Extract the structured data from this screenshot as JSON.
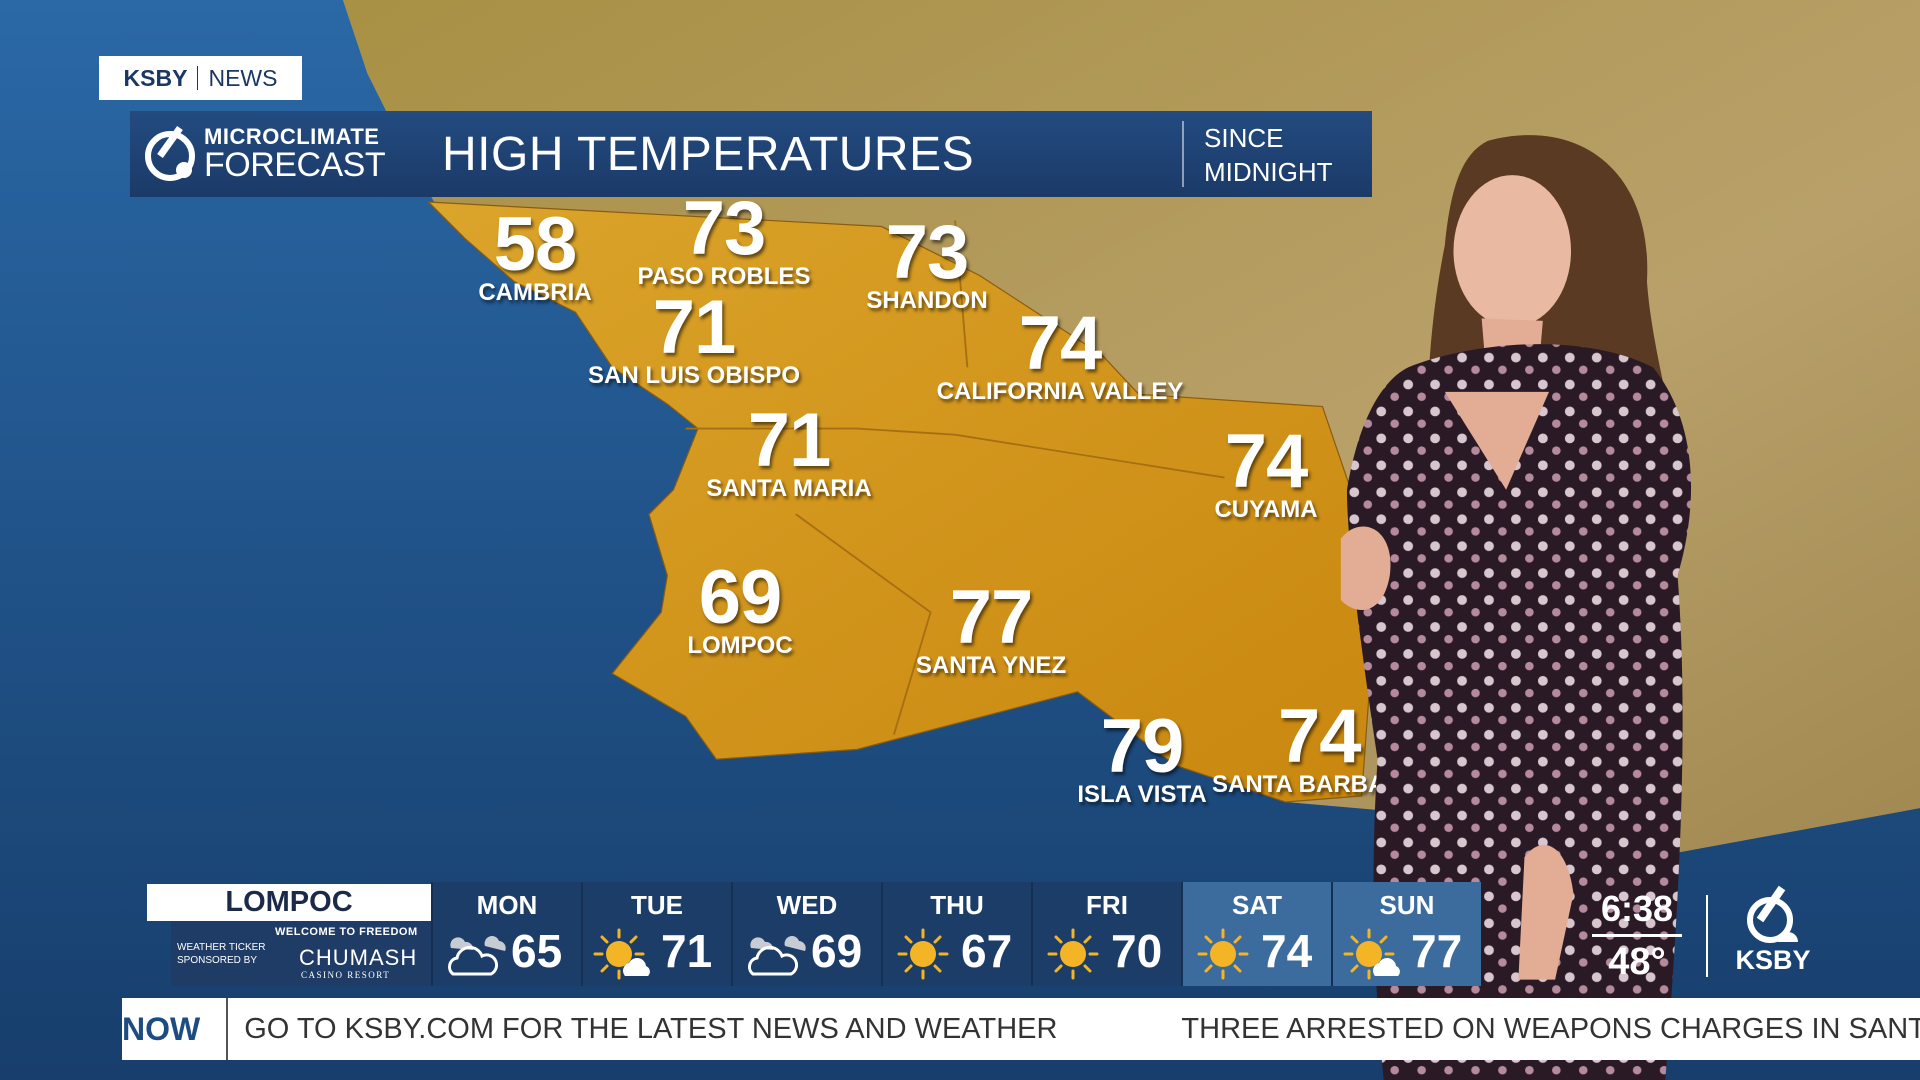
{
  "brand_tab": {
    "station": "KSBY",
    "section": "NEWS"
  },
  "header": {
    "logo_line1": "MICROCLIMATE",
    "logo_line2": "FORECAST",
    "title": "HIGH TEMPERATURES",
    "period_line1": "SINCE",
    "period_line2": "MIDNIGHT"
  },
  "cities": [
    {
      "name": "CAMBRIA",
      "temp": "58"
    },
    {
      "name": "PASO ROBLES",
      "temp": "73"
    },
    {
      "name": "SHANDON",
      "temp": "73"
    },
    {
      "name": "SAN LUIS OBISPO",
      "temp": "71"
    },
    {
      "name": "CALIFORNIA VALLEY",
      "temp": "74"
    },
    {
      "name": "SANTA MARIA",
      "temp": "71"
    },
    {
      "name": "CUYAMA",
      "temp": "74"
    },
    {
      "name": "LOMPOC",
      "temp": "69"
    },
    {
      "name": "SANTA YNEZ",
      "temp": "77"
    },
    {
      "name": "ISLA VISTA",
      "temp": "79"
    },
    {
      "name": "SANTA BARBARA",
      "temp": "74"
    }
  ],
  "forecast": {
    "location": "LOMPOC",
    "sponsor_label": "WEATHER TICKER SPONSORED BY",
    "sponsor_tagline": "WELCOME TO FREEDOM",
    "sponsor_name": "CHUMASH",
    "sponsor_sub": "CASINO RESORT",
    "days": [
      {
        "day": "MON",
        "temp": "65",
        "icon": "cloudy-icon"
      },
      {
        "day": "TUE",
        "temp": "71",
        "icon": "partly-sunny-icon"
      },
      {
        "day": "WED",
        "temp": "69",
        "icon": "cloudy-icon"
      },
      {
        "day": "THU",
        "temp": "67",
        "icon": "sunny-icon"
      },
      {
        "day": "FRI",
        "temp": "70",
        "icon": "sunny-icon"
      },
      {
        "day": "SAT",
        "temp": "74",
        "icon": "sunny-icon"
      },
      {
        "day": "SUN",
        "temp": "77",
        "icon": "partly-sunny-icon"
      }
    ]
  },
  "clock": {
    "time": "6:38",
    "temperature": "48°"
  },
  "station_logo": {
    "text": "KSBY"
  },
  "ticker": {
    "label": "NOW",
    "stories": [
      "GO TO KSBY.COM FOR THE LATEST NEWS AND WEATHER",
      "THREE ARRESTED ON WEAPONS CHARGES IN SANTA MARIA"
    ]
  },
  "colors": {
    "ocean": "#1d4f86",
    "land": "#b39a52",
    "region": "#d99a1f",
    "panel": "#1d3d69",
    "panel_light": "#3c6b9d",
    "ticker_accent": "#1d4c82"
  }
}
